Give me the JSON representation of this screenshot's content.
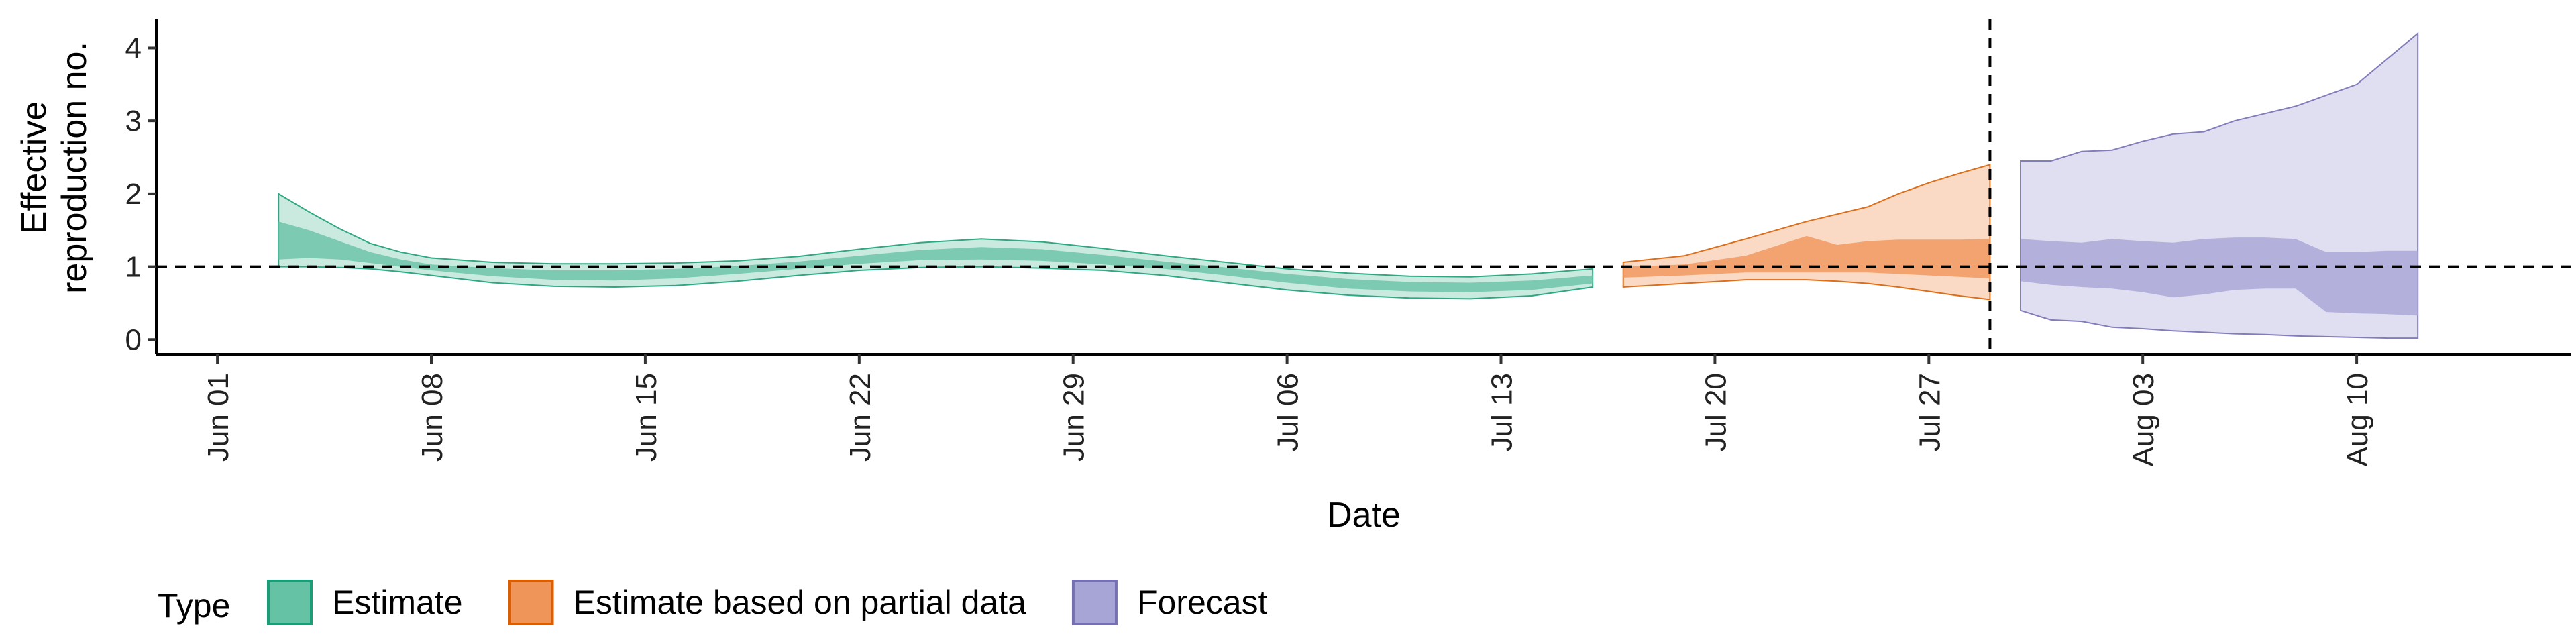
{
  "chart_data": {
    "type": "area",
    "title": "",
    "xlabel": "Date",
    "ylabel_lines": [
      "Effective",
      "reproduction no."
    ],
    "ylim": [
      -0.2,
      4.4
    ],
    "yticks": [
      0,
      1,
      2,
      3,
      4
    ],
    "xlim": [
      "2020-05-30",
      "2020-08-17"
    ],
    "xticks": [
      "2020-06-01",
      "2020-06-08",
      "2020-06-15",
      "2020-06-22",
      "2020-06-29",
      "2020-07-06",
      "2020-07-13",
      "2020-07-20",
      "2020-07-27",
      "2020-08-03",
      "2020-08-10"
    ],
    "xtick_labels": [
      "Jun 01",
      "Jun 08",
      "Jun 15",
      "Jun 22",
      "Jun 29",
      "Jul 06",
      "Jul 13",
      "Jul 20",
      "Jul 27",
      "Aug 03",
      "Aug 10"
    ],
    "reference_hline": 1,
    "reference_vline": "2020-07-29",
    "legend": {
      "title": "Type",
      "position": "bottom",
      "entries": [
        {
          "label": "Estimate",
          "fill": "#66c2a5",
          "stroke": "#1b9e77"
        },
        {
          "label": "Estimate based on partial data",
          "fill": "#f0955a",
          "stroke": "#d95f02"
        },
        {
          "label": "Forecast",
          "fill": "#a7a4d6",
          "stroke": "#7570b3"
        }
      ]
    },
    "series": [
      {
        "type": "Estimate",
        "outer_alpha": 0.35,
        "inner_alpha": 0.8,
        "points": [
          {
            "x": "2020-06-03",
            "lo90": 1.0,
            "lo50": 1.1,
            "hi50": 1.62,
            "hi90": 2.0
          },
          {
            "x": "2020-06-04",
            "lo90": 1.0,
            "lo50": 1.12,
            "hi50": 1.5,
            "hi90": 1.75
          },
          {
            "x": "2020-06-05",
            "lo90": 0.99,
            "lo50": 1.1,
            "hi50": 1.35,
            "hi90": 1.52
          },
          {
            "x": "2020-06-06",
            "lo90": 0.97,
            "lo50": 1.05,
            "hi50": 1.2,
            "hi90": 1.32
          },
          {
            "x": "2020-06-07",
            "lo90": 0.93,
            "lo50": 1.0,
            "hi50": 1.1,
            "hi90": 1.2
          },
          {
            "x": "2020-06-08",
            "lo90": 0.88,
            "lo50": 0.95,
            "hi50": 1.03,
            "hi90": 1.12
          },
          {
            "x": "2020-06-10",
            "lo90": 0.78,
            "lo50": 0.87,
            "hi50": 0.98,
            "hi90": 1.06
          },
          {
            "x": "2020-06-12",
            "lo90": 0.73,
            "lo50": 0.82,
            "hi50": 0.95,
            "hi90": 1.04
          },
          {
            "x": "2020-06-14",
            "lo90": 0.72,
            "lo50": 0.81,
            "hi50": 0.95,
            "hi90": 1.04
          },
          {
            "x": "2020-06-16",
            "lo90": 0.74,
            "lo50": 0.84,
            "hi50": 0.97,
            "hi90": 1.05
          },
          {
            "x": "2020-06-18",
            "lo90": 0.8,
            "lo50": 0.9,
            "hi50": 1.01,
            "hi90": 1.08
          },
          {
            "x": "2020-06-20",
            "lo90": 0.88,
            "lo50": 0.97,
            "hi50": 1.07,
            "hi90": 1.14
          },
          {
            "x": "2020-06-22",
            "lo90": 0.95,
            "lo50": 1.04,
            "hi50": 1.15,
            "hi90": 1.24
          },
          {
            "x": "2020-06-24",
            "lo90": 0.99,
            "lo50": 1.09,
            "hi50": 1.23,
            "hi90": 1.33
          },
          {
            "x": "2020-06-26",
            "lo90": 1.0,
            "lo50": 1.1,
            "hi50": 1.27,
            "hi90": 1.38
          },
          {
            "x": "2020-06-28",
            "lo90": 0.98,
            "lo50": 1.08,
            "hi50": 1.24,
            "hi90": 1.34
          },
          {
            "x": "2020-06-30",
            "lo90": 0.95,
            "lo50": 1.03,
            "hi50": 1.16,
            "hi90": 1.25
          },
          {
            "x": "2020-07-02",
            "lo90": 0.88,
            "lo50": 0.97,
            "hi50": 1.07,
            "hi90": 1.15
          },
          {
            "x": "2020-07-04",
            "lo90": 0.78,
            "lo50": 0.88,
            "hi50": 0.99,
            "hi90": 1.06
          },
          {
            "x": "2020-07-06",
            "lo90": 0.68,
            "lo50": 0.78,
            "hi50": 0.9,
            "hi90": 0.97
          },
          {
            "x": "2020-07-08",
            "lo90": 0.61,
            "lo50": 0.7,
            "hi50": 0.83,
            "hi90": 0.91
          },
          {
            "x": "2020-07-10",
            "lo90": 0.57,
            "lo50": 0.66,
            "hi50": 0.79,
            "hi90": 0.87
          },
          {
            "x": "2020-07-12",
            "lo90": 0.56,
            "lo50": 0.65,
            "hi50": 0.78,
            "hi90": 0.86
          },
          {
            "x": "2020-07-14",
            "lo90": 0.6,
            "lo50": 0.68,
            "hi50": 0.81,
            "hi90": 0.9
          },
          {
            "x": "2020-07-16",
            "lo90": 0.72,
            "lo50": 0.77,
            "hi50": 0.88,
            "hi90": 0.97
          }
        ]
      },
      {
        "type": "Estimate based on partial data",
        "outer_alpha": 0.35,
        "inner_alpha": 0.8,
        "points": [
          {
            "x": "2020-07-17",
            "lo90": 0.72,
            "lo50": 0.85,
            "hi50": 1.0,
            "hi90": 1.06
          },
          {
            "x": "2020-07-19",
            "lo90": 0.77,
            "lo50": 0.88,
            "hi50": 1.03,
            "hi90": 1.15
          },
          {
            "x": "2020-07-21",
            "lo90": 0.82,
            "lo50": 0.92,
            "hi50": 1.15,
            "hi90": 1.38
          },
          {
            "x": "2020-07-23",
            "lo90": 0.82,
            "lo50": 0.92,
            "hi50": 1.42,
            "hi90": 1.62
          },
          {
            "x": "2020-07-24",
            "lo90": 0.8,
            "lo50": 0.92,
            "hi50": 1.3,
            "hi90": 1.72
          },
          {
            "x": "2020-07-25",
            "lo90": 0.77,
            "lo50": 0.92,
            "hi50": 1.35,
            "hi90": 1.82
          },
          {
            "x": "2020-07-26",
            "lo90": 0.72,
            "lo50": 0.9,
            "hi50": 1.37,
            "hi90": 2.0
          },
          {
            "x": "2020-07-27",
            "lo90": 0.66,
            "lo50": 0.88,
            "hi50": 1.37,
            "hi90": 2.15
          },
          {
            "x": "2020-07-28",
            "lo90": 0.6,
            "lo50": 0.86,
            "hi50": 1.37,
            "hi90": 2.28
          },
          {
            "x": "2020-07-29",
            "lo90": 0.55,
            "lo50": 0.84,
            "hi50": 1.38,
            "hi90": 2.4
          }
        ]
      },
      {
        "type": "Forecast",
        "outer_alpha": 0.35,
        "inner_alpha": 0.8,
        "points": [
          {
            "x": "2020-07-30",
            "lo90": 0.4,
            "lo50": 0.8,
            "hi50": 1.38,
            "hi90": 2.45
          },
          {
            "x": "2020-07-31",
            "lo90": 0.27,
            "lo50": 0.75,
            "hi50": 1.35,
            "hi90": 2.45
          },
          {
            "x": "2020-08-01",
            "lo90": 0.25,
            "lo50": 0.72,
            "hi50": 1.33,
            "hi90": 2.58
          },
          {
            "x": "2020-08-02",
            "lo90": 0.17,
            "lo50": 0.7,
            "hi50": 1.38,
            "hi90": 2.6
          },
          {
            "x": "2020-08-03",
            "lo90": 0.15,
            "lo50": 0.65,
            "hi50": 1.35,
            "hi90": 2.72
          },
          {
            "x": "2020-08-04",
            "lo90": 0.12,
            "lo50": 0.58,
            "hi50": 1.33,
            "hi90": 2.82
          },
          {
            "x": "2020-08-05",
            "lo90": 0.1,
            "lo50": 0.62,
            "hi50": 1.38,
            "hi90": 2.85
          },
          {
            "x": "2020-08-06",
            "lo90": 0.08,
            "lo50": 0.68,
            "hi50": 1.4,
            "hi90": 3.0
          },
          {
            "x": "2020-08-07",
            "lo90": 0.07,
            "lo50": 0.7,
            "hi50": 1.4,
            "hi90": 3.1
          },
          {
            "x": "2020-08-08",
            "lo90": 0.05,
            "lo50": 0.7,
            "hi50": 1.38,
            "hi90": 3.2
          },
          {
            "x": "2020-08-09",
            "lo90": 0.04,
            "lo50": 0.38,
            "hi50": 1.2,
            "hi90": 3.35
          },
          {
            "x": "2020-08-10",
            "lo90": 0.03,
            "lo50": 0.36,
            "hi50": 1.2,
            "hi90": 3.5
          },
          {
            "x": "2020-08-11",
            "lo90": 0.02,
            "lo50": 0.35,
            "hi50": 1.22,
            "hi90": 3.85
          },
          {
            "x": "2020-08-12",
            "lo90": 0.02,
            "lo50": 0.33,
            "hi50": 1.22,
            "hi90": 4.2
          }
        ]
      }
    ]
  }
}
